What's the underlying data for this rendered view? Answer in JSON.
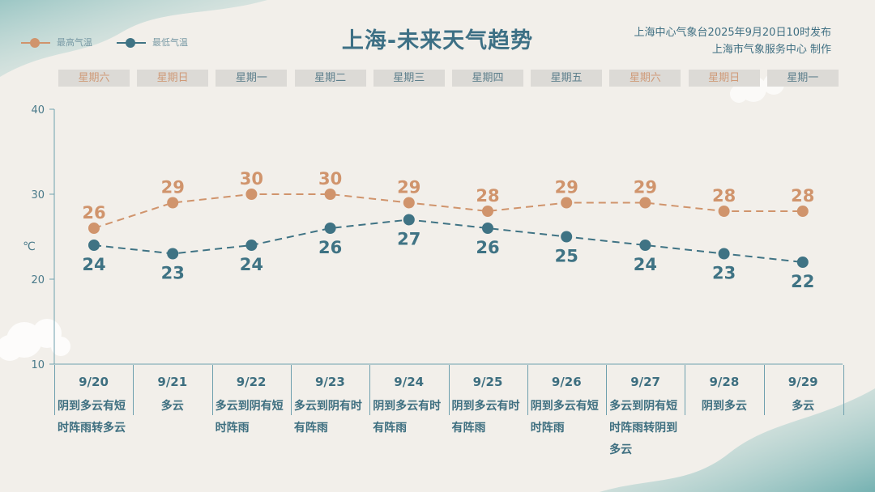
{
  "title": "上海-未来天气趋势",
  "source": {
    "line1": "上海中心气象台2025年9月20日10时发布",
    "line2": "上海市气象服务中心 制作"
  },
  "legend": {
    "high": "最高气温",
    "low": "最低气温"
  },
  "colors": {
    "high": "#d0946c",
    "low": "#3f7384",
    "axis": "#6fa0ae",
    "weekend": "#cf9a78"
  },
  "weekdays": [
    "星期六",
    "星期日",
    "星期一",
    "星期二",
    "星期三",
    "星期四",
    "星期五",
    "星期六",
    "星期日",
    "星期一"
  ],
  "weekend_flags": [
    true,
    true,
    false,
    false,
    false,
    false,
    false,
    true,
    true,
    false
  ],
  "weather": [
    "阴到多云有短时阵雨转多云",
    "多云",
    "多云到阴有短时阵雨",
    "多云到阴有时有阵雨",
    "阴到多云有时有阵雨",
    "阴到多云有时有阵雨",
    "阴到多云有短时阵雨",
    "多云到阴有短时阵雨转阴到多云",
    "阴到多云",
    "多云"
  ],
  "chart_data": {
    "type": "line",
    "categories": [
      "9/20",
      "9/21",
      "9/22",
      "9/23",
      "9/24",
      "9/25",
      "9/26",
      "9/27",
      "9/28",
      "9/29"
    ],
    "series": [
      {
        "name": "最高气温",
        "values": [
          26,
          29,
          30,
          30,
          29,
          28,
          29,
          29,
          28,
          28
        ]
      },
      {
        "name": "最低气温",
        "values": [
          24,
          23,
          24,
          26,
          27,
          26,
          25,
          24,
          23,
          22
        ]
      }
    ],
    "ylim": [
      10,
      40
    ],
    "yticks": [
      10,
      20,
      30,
      40
    ],
    "ylabel": "℃",
    "line_style": "dashed"
  }
}
